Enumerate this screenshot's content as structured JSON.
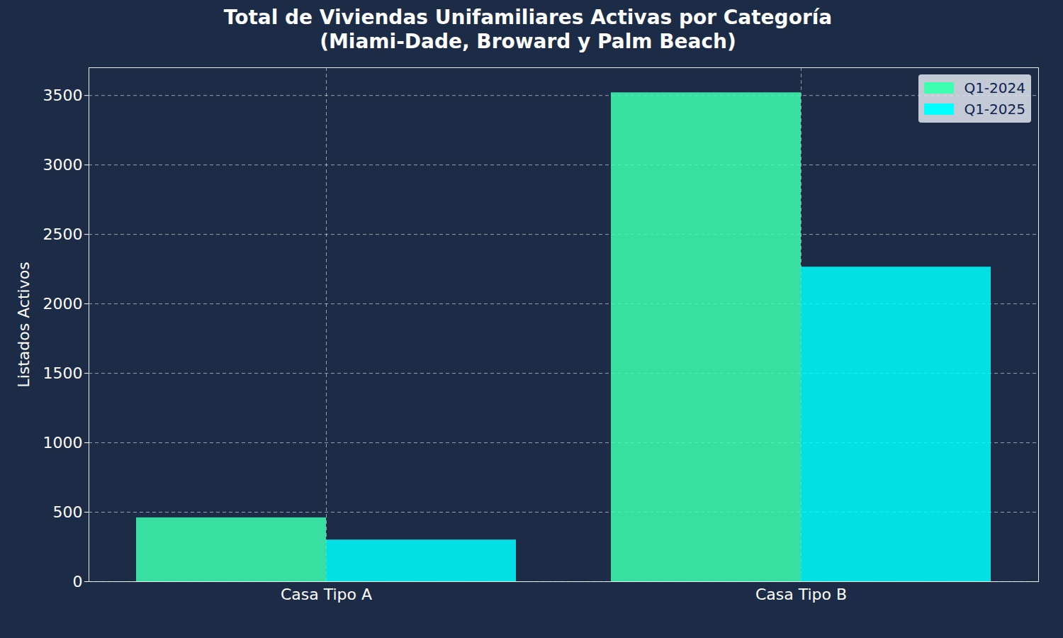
{
  "chart_data": {
    "type": "bar",
    "title": "Total de Viviendas Unifamiliares Activas por Categoría",
    "subtitle": "(Miami-Dade, Broward y Palm Beach)",
    "y_label": "Listados Activos",
    "categories": [
      "Casa Tipo A",
      "Casa Tipo B"
    ],
    "series": [
      {
        "name": "Q1-2024",
        "color": "#3dffb0",
        "values": [
          460,
          3520
        ]
      },
      {
        "name": "Q1-2025",
        "color": "#00ffff",
        "values": [
          300,
          2265
        ]
      }
    ],
    "ylim": [
      0,
      3700
    ],
    "yticks": [
      0,
      500,
      1000,
      1500,
      2000,
      2500,
      3000,
      3500
    ],
    "grid": true,
    "legend": "upper right"
  }
}
